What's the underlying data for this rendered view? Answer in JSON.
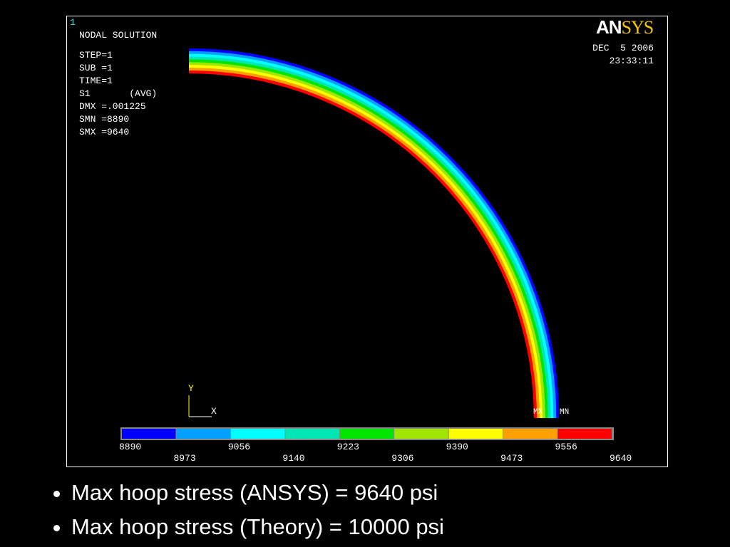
{
  "plot": {
    "window_number": "1",
    "heading": "NODAL SOLUTION",
    "info": [
      "STEP=1",
      "SUB =1",
      "TIME=1",
      "S1       (AVG)",
      "DMX =.001225",
      "SMN =8890",
      "SMX =9640"
    ],
    "logo": {
      "prefix": "AN",
      "suffix": "SYS"
    },
    "date": "DEC  5 2006",
    "time": "23:33:11",
    "axis_y": "Y",
    "axis_x": "X",
    "max_marker": "MX",
    "min_marker": "MN",
    "legend_labels": [
      "8890",
      "8973",
      "9056",
      "9140",
      "9223",
      "9306",
      "9390",
      "9473",
      "9556",
      "9640"
    ]
  },
  "bullets": [
    "Max hoop stress (ANSYS) = 9640 psi",
    "Max hoop stress (Theory) = 10000 psi"
  ]
}
